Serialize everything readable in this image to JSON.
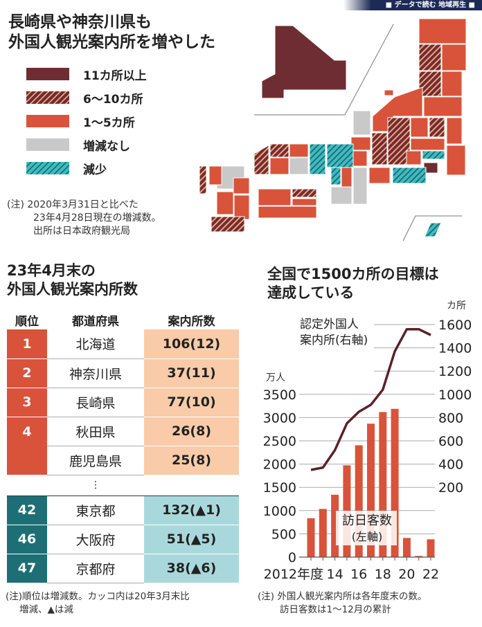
{
  "header_tag": "■ データで読む 地域再生 ■",
  "title": [
    "長崎県や神奈川県も",
    "外国人観光案内所を増やした"
  ],
  "legend": [
    {
      "label": "11カ所以上",
      "color": "#6e2d32",
      "pattern": "solid"
    },
    {
      "label": "6～10カ所",
      "color": "#6e2d32",
      "pattern": "hatched"
    },
    {
      "label": "1～5カ所",
      "color": "#d9533a",
      "pattern": "solid"
    },
    {
      "label": "増減なし",
      "color": "#c9c9c9",
      "pattern": "solid"
    },
    {
      "label": "減少",
      "color": "#3fbcc2",
      "pattern": "hatched"
    }
  ],
  "map_note": [
    "(注) 2020年3月31日と比べた",
    "23年4月28日現在の増減数。",
    "出所は日本政府観光局"
  ],
  "table": {
    "title": [
      "23年4月末の",
      "外国人観光案内所数"
    ],
    "headers": [
      "順位",
      "都道府県",
      "案内所数"
    ],
    "rows": [
      {
        "rank": "1",
        "pref": "北海道",
        "count": "106(12)"
      },
      {
        "rank": "2",
        "pref": "神奈川県",
        "count": "37(11)"
      },
      {
        "rank": "3",
        "pref": "長崎県",
        "count": "77(10)"
      },
      {
        "rank": "4",
        "pref": "秋田県",
        "count": "26(8)"
      },
      {
        "rank": "",
        "pref": "鹿児島県",
        "count": "25(8)"
      }
    ],
    "ellipsis": "⋮",
    "bottom_rows": [
      {
        "rank": "42",
        "pref": "東京都",
        "count": "132(▲1)"
      },
      {
        "rank": "46",
        "pref": "大阪府",
        "count": "51(▲5)"
      },
      {
        "rank": "47",
        "pref": "京都府",
        "count": "38(▲6)"
      }
    ],
    "note": [
      "(注)順位は増減数。カッコ内は20年3月末比",
      "増減、▲は減"
    ]
  },
  "chart_data": {
    "type": "bar+line",
    "title": [
      "全国で1500カ所の目標は",
      "達成している"
    ],
    "x": [
      2012,
      2013,
      2014,
      2015,
      2016,
      2017,
      2018,
      2019,
      2020,
      2021,
      2022
    ],
    "xtick_labels": [
      "2012年度",
      "14",
      "16",
      "18",
      "20",
      "22"
    ],
    "series": [
      {
        "name": "訪日客数(左軸)",
        "type": "bar",
        "axis": "left",
        "color": "#d9533a",
        "values": [
          836,
          1036,
          1341,
          1974,
          2404,
          2869,
          3119,
          3188,
          412,
          25,
          383
        ]
      },
      {
        "name": "認定外国人案内所(右軸)",
        "type": "line",
        "axis": "right",
        "color": "#5a2129",
        "values": [
          350,
          370,
          520,
          750,
          850,
          910,
          1040,
          1370,
          1560,
          1560,
          1510
        ]
      }
    ],
    "series_labels": {
      "bar": [
        "訪日客数",
        "(左軸)"
      ],
      "line": [
        "認定外国人",
        "案内所(右軸)"
      ]
    },
    "left_axis": {
      "unit": "万人",
      "ticks": [
        0,
        500,
        1000,
        1500,
        2000,
        2500,
        3000,
        3500
      ],
      "ylim": [
        0,
        5000
      ]
    },
    "right_axis": {
      "unit": "カ所",
      "ticks": [
        200,
        400,
        600,
        800,
        1000,
        1200,
        1400,
        1600
      ],
      "ylim": [
        -400,
        1600
      ]
    },
    "grid": true,
    "note": [
      "(注) 外国人観光案内所は各年度末の数。",
      "訪日客数は1～12月の累計"
    ]
  }
}
